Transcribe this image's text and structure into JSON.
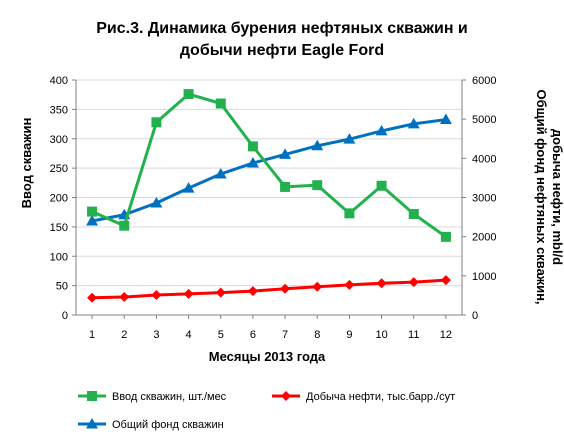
{
  "chart_data": {
    "type": "line",
    "title_line1": "Рис.3. Динамика бурения нефтяных скважин и",
    "title_line2": "добычи нефти Eagle Ford",
    "xlabel": "Месяцы 2013 года",
    "ylabel_left": "Ввод скважин",
    "ylabel_right_line1": "Общий фонд нефтяных скважин,",
    "ylabel_right_line2": "добыча нефти, mbl/d",
    "x": [
      1,
      2,
      3,
      4,
      5,
      6,
      7,
      8,
      9,
      10,
      11,
      12
    ],
    "ylim_left": [
      0,
      400
    ],
    "ylim_right": [
      0,
      6000
    ],
    "yticks_left": [
      0,
      50,
      100,
      150,
      200,
      250,
      300,
      350,
      400
    ],
    "yticks_right": [
      0,
      1000,
      2000,
      3000,
      4000,
      5000,
      6000
    ],
    "legend_position": "bottom",
    "series": [
      {
        "name": "Ввод скважин, шт./мес",
        "axis": "left",
        "color": "#22B14C",
        "marker": "square",
        "values": [
          176,
          152,
          328,
          376,
          360,
          287,
          218,
          221,
          173,
          220,
          172,
          133
        ]
      },
      {
        "name": "Добыча нефти, тыс.барр./сут",
        "axis": "right",
        "color": "#FF0000",
        "marker": "diamond",
        "values": [
          440,
          460,
          510,
          540,
          570,
          610,
          670,
          720,
          770,
          810,
          840,
          890
        ]
      },
      {
        "name": "Общий фонд скважин",
        "axis": "right",
        "color": "#0070C0",
        "marker": "triangle",
        "values": [
          2400,
          2560,
          2860,
          3240,
          3600,
          3880,
          4100,
          4320,
          4490,
          4700,
          4880,
          4990
        ]
      }
    ]
  }
}
